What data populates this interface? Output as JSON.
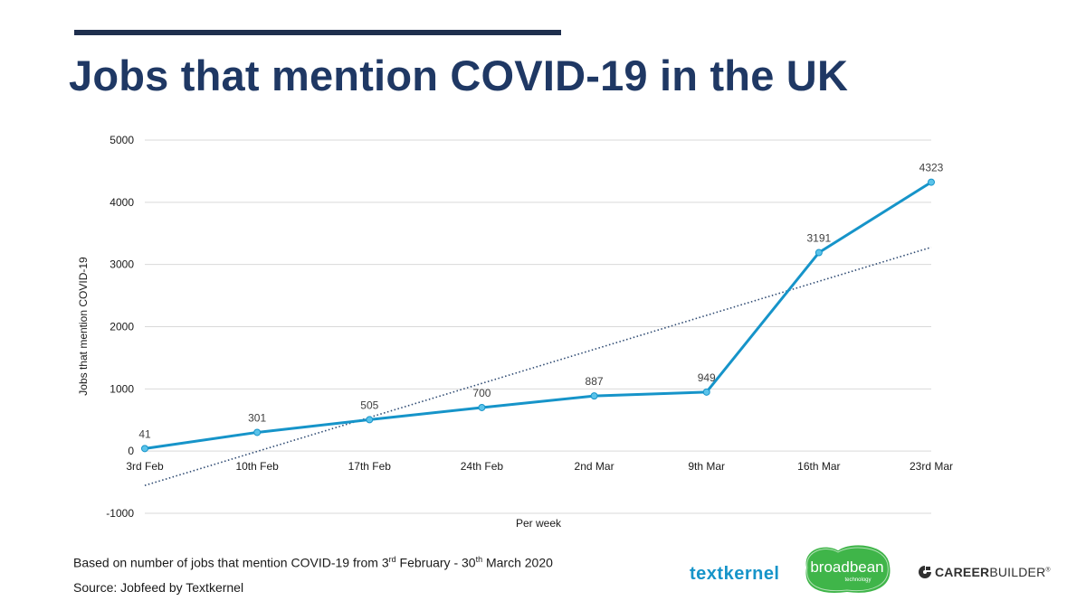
{
  "header": {
    "title": "Jobs that mention COVID-19 in the UK"
  },
  "colors": {
    "title": "#1f3864",
    "rule": "#1f2f4e",
    "series": "#1694c9",
    "trendline": "#2e4a72",
    "grid": "#d9d9d9",
    "broadbean": "#3fb549",
    "textkernel": "#1694c9"
  },
  "chart_data": {
    "type": "line",
    "title": "",
    "xlabel": "Per week",
    "ylabel": "Jobs that mention  COVID-19",
    "categories": [
      "3rd Feb",
      "10th Feb",
      "17th Feb",
      "24th Feb",
      "2nd Mar",
      "9th Mar",
      "16th Mar",
      "23rd Mar"
    ],
    "series": [
      {
        "values": [
          41,
          301,
          505,
          700,
          887,
          949,
          3191,
          4323
        ],
        "data_labels": true,
        "markers": true
      }
    ],
    "trendline": {
      "type": "linear",
      "style": "dotted"
    },
    "ylim": [
      -1000,
      5000
    ],
    "yticks": [
      -1000,
      0,
      1000,
      2000,
      3000,
      4000,
      5000
    ],
    "grid": true,
    "legend": "none"
  },
  "notes": {
    "basis_prefix": "Based on number of jobs that mention COVID-19 from 3",
    "basis_sup1": "rd",
    "basis_middle": " February - 30",
    "basis_sup2": "th",
    "basis_suffix": " March 2020",
    "source": "Source: Jobfeed by Textkernel"
  },
  "logos": {
    "textkernel": "textkernel",
    "broadbean": "broadbean",
    "broadbean_sub": "technology",
    "careerbuilder_bold": "CAREER",
    "careerbuilder_light": "BUILDER",
    "careerbuilder_mark": "®",
    "careerbuilder_icon": "careerbuilder-icon"
  }
}
